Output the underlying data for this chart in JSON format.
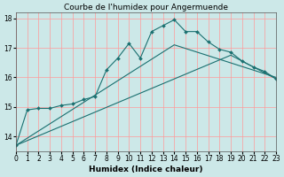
{
  "title": "Courbe de l'humidex pour Angermuende",
  "xlabel": "Humidex (Indice chaleur)",
  "background_color": "#cce8e8",
  "grid_color": "#ff9999",
  "line_color": "#1a7070",
  "xlim": [
    0,
    23
  ],
  "ylim": [
    13.5,
    18.2
  ],
  "yticks": [
    14,
    15,
    16,
    17,
    18
  ],
  "xticks": [
    0,
    1,
    2,
    3,
    4,
    5,
    6,
    7,
    8,
    9,
    10,
    11,
    12,
    13,
    14,
    15,
    16,
    17,
    18,
    19,
    20,
    21,
    22,
    23
  ],
  "series1_x": [
    0,
    1,
    2,
    3,
    4,
    5,
    6,
    7,
    8,
    9,
    10,
    11,
    12,
    13,
    14,
    15,
    16,
    17,
    18,
    19,
    20,
    21,
    22,
    23
  ],
  "series1_y": [
    13.7,
    14.9,
    14.95,
    14.95,
    15.05,
    15.1,
    15.25,
    15.35,
    16.25,
    16.65,
    17.15,
    16.65,
    17.55,
    17.75,
    17.95,
    17.55,
    17.55,
    17.2,
    16.95,
    16.85,
    16.55,
    16.35,
    16.2,
    15.95
  ],
  "series2_x": [
    0,
    14,
    23
  ],
  "series2_y": [
    13.7,
    17.1,
    16.0
  ],
  "series3_x": [
    0,
    19,
    23
  ],
  "series3_y": [
    13.7,
    16.75,
    15.95
  ],
  "marker": "D",
  "markersize": 2.0,
  "linewidth": 0.8,
  "title_fontsize": 6.5,
  "label_fontsize": 6.5,
  "tick_fontsize": 5.5
}
